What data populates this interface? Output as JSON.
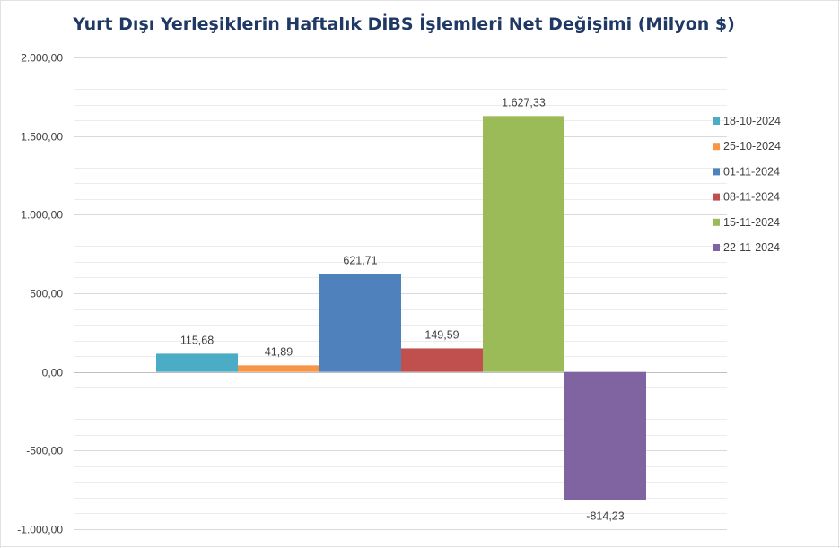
{
  "chart_data": {
    "type": "bar",
    "title": "Yurt Dışı Yerleşiklerin Haftalık DİBS İşlemleri Net Değişimi (Milyon $)",
    "xlabel": "",
    "ylabel": "",
    "ylim": [
      -1000,
      2000
    ],
    "y_ticks": [
      "2.000,00",
      "1.500,00",
      "1.000,00",
      "500,00",
      "0,00",
      "-500,00",
      "-1.000,00"
    ],
    "y_tick_values": [
      2000,
      1500,
      1000,
      500,
      0,
      -500,
      -1000
    ],
    "grid": true,
    "legend_position": "right",
    "series": [
      {
        "name": "18-10-2024",
        "value": 115.68,
        "label": "115,68",
        "color": "#4bacc6"
      },
      {
        "name": "25-10-2024",
        "value": 41.89,
        "label": "41,89",
        "color": "#f79646"
      },
      {
        "name": "01-11-2024",
        "value": 621.71,
        "label": "621,71",
        "color": "#4f81bd"
      },
      {
        "name": "08-11-2024",
        "value": 149.59,
        "label": "149,59",
        "color": "#c0504d"
      },
      {
        "name": "15-11-2024",
        "value": 1627.33,
        "label": "1.627,33",
        "color": "#9bbb59"
      },
      {
        "name": "22-11-2024",
        "value": -814.23,
        "label": "-814,23",
        "color": "#8064a2"
      }
    ]
  }
}
